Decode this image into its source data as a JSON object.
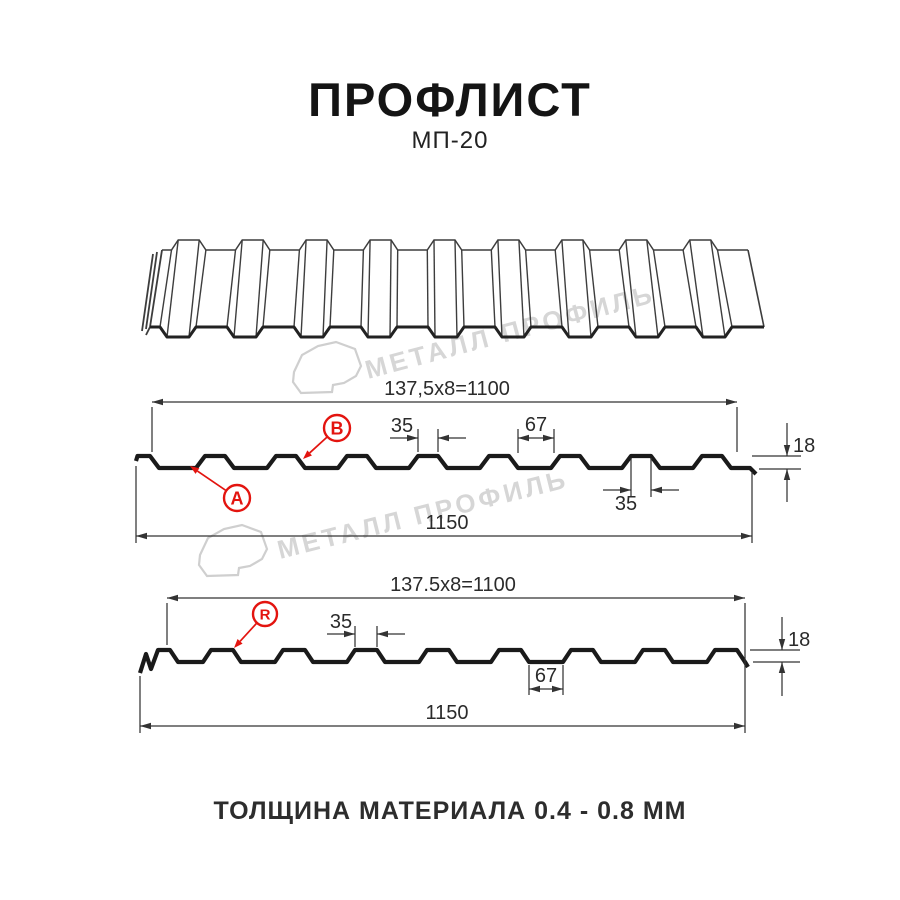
{
  "header": {
    "title": "ПРОФЛИСТ",
    "subtitle": "МП-20"
  },
  "footer": {
    "thickness_note": "ТОЛЩИНА МАТЕРИАЛА 0.4 - 0.8 ММ"
  },
  "watermark": {
    "brand": "МЕТАЛЛ ПРОФИЛЬ",
    "color": "#d6d6d6"
  },
  "colors": {
    "drawing_line": "#3d3d3d",
    "profile_line": "#1a1a1a",
    "dimension_line": "#333333",
    "dimension_text": "#2b2b2b",
    "accent_red": "#e3140f"
  },
  "perspective_view": {
    "name": "profile-sheet-3d-view",
    "rib_count": 9
  },
  "sections": [
    {
      "name": "profile-section-AB",
      "module_width": "137,5x8=1100",
      "overall_width": "1150",
      "height": "18",
      "crest_top_width": "35",
      "valley_width": "67",
      "crest_bottom_width": "35",
      "point_labels": [
        "А",
        "В"
      ]
    },
    {
      "name": "profile-section-R",
      "module_width": "137.5x8=1100",
      "overall_width": "1150",
      "height": "18",
      "crest_top_width": "35",
      "valley_width": "67",
      "point_labels": [
        "R"
      ]
    }
  ]
}
